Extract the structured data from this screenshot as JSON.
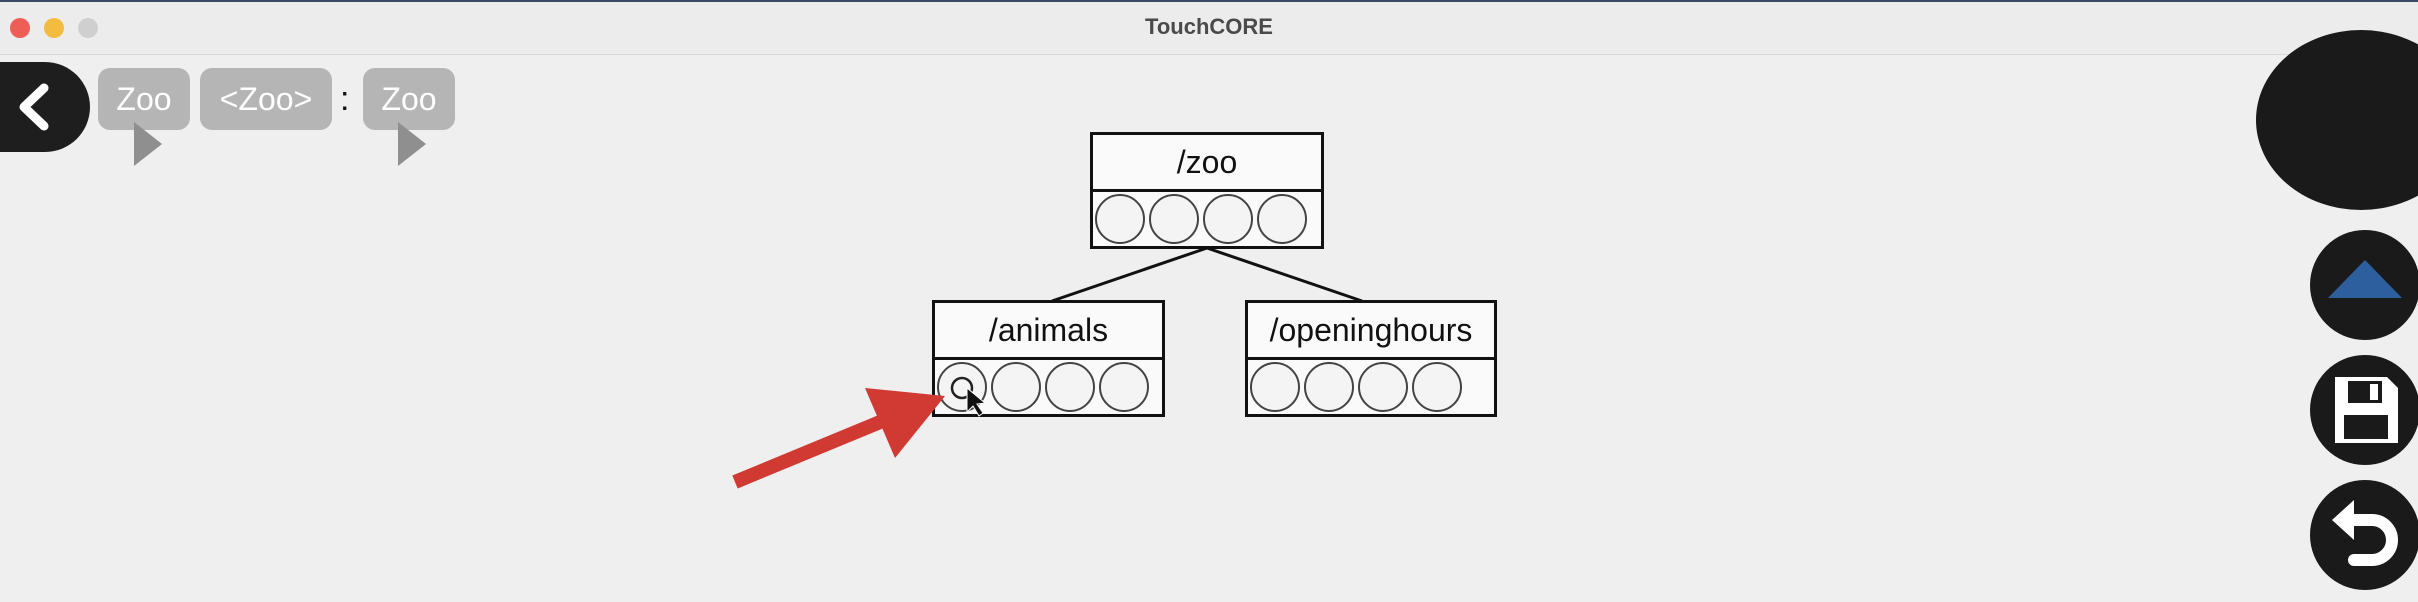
{
  "window": {
    "title": "TouchCORE"
  },
  "breadcrumb": {
    "item1": "Zoo",
    "item2": "<Zoo>",
    "separator": ":",
    "item3": "Zoo"
  },
  "diagram": {
    "root": {
      "label": "/zoo",
      "slots": 4
    },
    "children": [
      {
        "label": "/animals",
        "slots": 4
      },
      {
        "label": "/openinghours",
        "slots": 4
      }
    ]
  },
  "colors": {
    "arrow": "#d13a32",
    "accent": "#2d5f9e",
    "close": "#ee5e57",
    "minimize": "#f4bc3f"
  },
  "icons": [
    "back-chevron-icon",
    "collapse-triangle-icon",
    "save-icon",
    "undo-icon",
    "mouse-cursor-icon"
  ]
}
